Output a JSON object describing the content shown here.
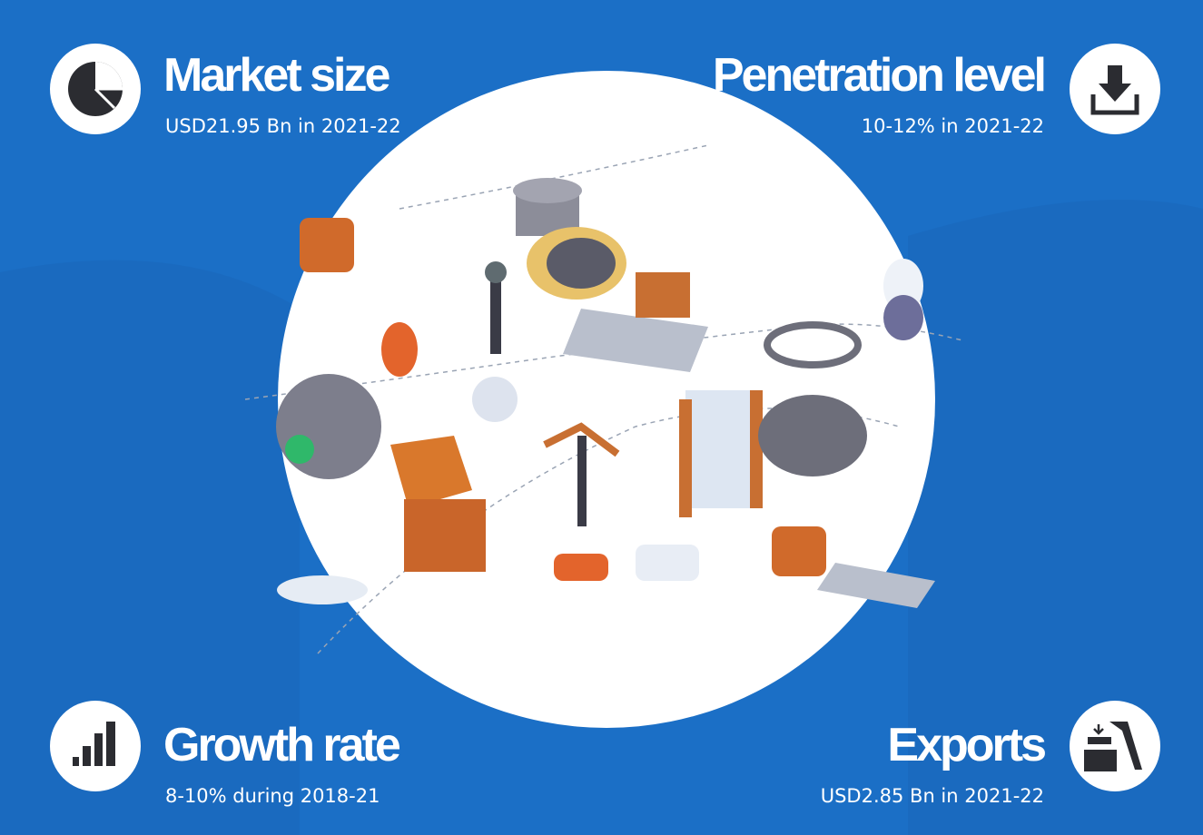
{
  "stats": [
    {
      "title": "Market size",
      "detail": "USD21.95 Bn in 2021-22"
    },
    {
      "title": "Penetration level",
      "detail": "10-12% in 2021-22"
    },
    {
      "title": "Growth rate",
      "detail": "8-10% during 2018-21"
    },
    {
      "title": "Exports",
      "detail": "USD2.85 Bn in 2021-22"
    }
  ]
}
